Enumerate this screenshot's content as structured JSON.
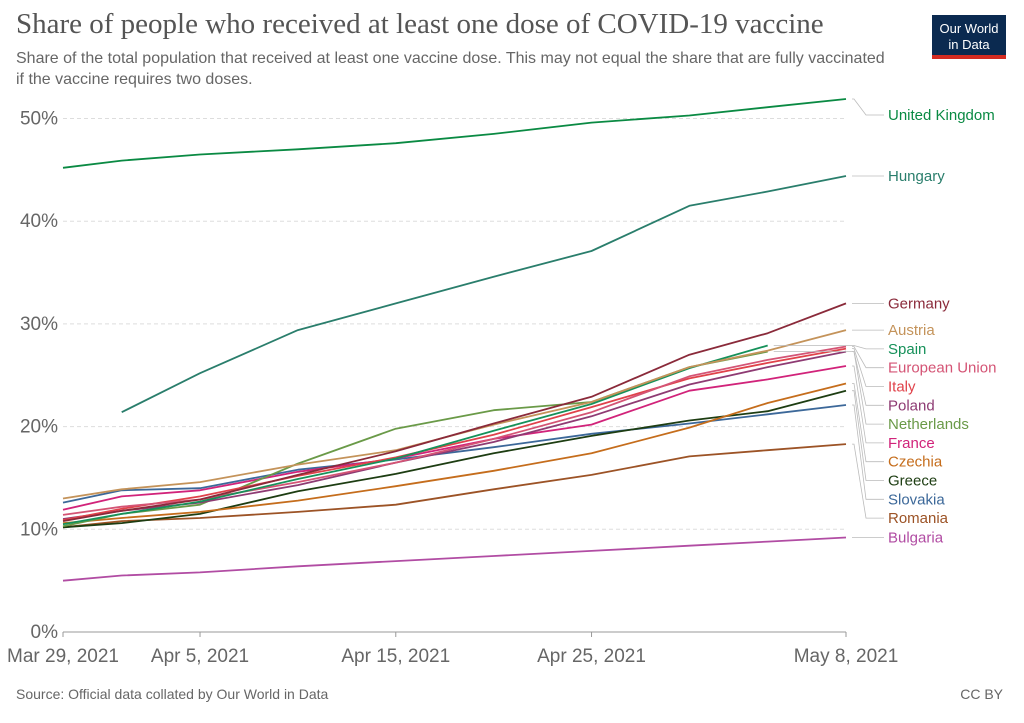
{
  "title": "Share of people who received at least one dose of COVID-19 vaccine",
  "subtitle": "Share of the total population that received at least one vaccine dose. This may not equal the share that are fully vaccinated if the vaccine requires two doses.",
  "logo": {
    "line1": "Our World",
    "line2": "in Data",
    "bg_color": "#0b2a50",
    "accent_color": "#d42b21"
  },
  "footer": {
    "source": "Source: Official data collated by Our World in Data",
    "license": "CC BY"
  },
  "chart_data": {
    "type": "line",
    "x_axis_type": "date",
    "x": [
      "2021-03-29",
      "2021-04-01",
      "2021-04-05",
      "2021-04-10",
      "2021-04-15",
      "2021-04-20",
      "2021-04-25",
      "2021-04-30",
      "2021-05-04",
      "2021-05-08"
    ],
    "x_ticks": [
      "Mar 29, 2021",
      "Apr 5, 2021",
      "Apr 15, 2021",
      "Apr 25, 2021",
      "May 8, 2021"
    ],
    "x_tick_dates": [
      "2021-03-29",
      "2021-04-05",
      "2021-04-15",
      "2021-04-25",
      "2021-05-08"
    ],
    "y_ticks": [
      "0%",
      "10%",
      "20%",
      "30%",
      "40%",
      "50%"
    ],
    "y_tick_values": [
      0,
      10,
      20,
      30,
      40,
      50
    ],
    "ylim": [
      0,
      52
    ],
    "grid": "horizontal dashed",
    "legend": "right, labels at line ends",
    "series": [
      {
        "name": "United Kingdom",
        "color": "#0a8a43",
        "values": [
          45.2,
          45.9,
          46.5,
          47.0,
          47.6,
          48.5,
          49.6,
          50.3,
          51.1,
          51.9
        ]
      },
      {
        "name": "Hungary",
        "color": "#2a7e6c",
        "values": [
          null,
          21.4,
          25.2,
          29.4,
          32.0,
          34.6,
          37.1,
          41.5,
          42.9,
          44.4
        ]
      },
      {
        "name": "Germany",
        "color": "#8a2a3a",
        "values": [
          10.8,
          11.8,
          12.9,
          15.3,
          17.6,
          20.3,
          22.9,
          27.0,
          29.1,
          32.0
        ]
      },
      {
        "name": "Austria",
        "color": "#c4935a",
        "values": [
          13.0,
          13.9,
          14.6,
          16.3,
          17.7,
          20.2,
          22.4,
          25.8,
          27.4,
          29.4
        ]
      },
      {
        "name": "Spain",
        "color": "#16915a",
        "values": [
          10.5,
          11.5,
          12.7,
          14.9,
          16.9,
          19.6,
          22.2,
          25.7,
          27.9,
          null
        ]
      },
      {
        "name": "European Union",
        "color": "#d45475",
        "values": [
          11.4,
          12.2,
          12.9,
          14.6,
          16.5,
          18.8,
          21.4,
          24.9,
          26.5,
          27.8
        ]
      },
      {
        "name": "Italy",
        "color": "#e0424a",
        "values": [
          10.9,
          12.0,
          13.2,
          15.2,
          17.0,
          19.2,
          21.9,
          24.7,
          26.2,
          27.6
        ]
      },
      {
        "name": "Poland",
        "color": "#8e3b73",
        "values": [
          11.0,
          11.8,
          12.6,
          14.3,
          16.5,
          18.5,
          21.0,
          24.1,
          25.8,
          27.3
        ]
      },
      {
        "name": "Netherlands",
        "color": "#6a9a48",
        "values": [
          10.3,
          11.5,
          12.4,
          16.4,
          19.8,
          21.6,
          22.4,
          25.8,
          27.3,
          null
        ]
      },
      {
        "name": "France",
        "color": "#d1237a",
        "values": [
          11.9,
          13.2,
          13.8,
          15.6,
          16.9,
          18.8,
          20.2,
          23.5,
          24.6,
          25.9
        ]
      },
      {
        "name": "Czechia",
        "color": "#c56d1c",
        "values": [
          10.6,
          11.1,
          11.7,
          12.8,
          14.2,
          15.7,
          17.4,
          19.9,
          22.3,
          24.2
        ]
      },
      {
        "name": "Greece",
        "color": "#1d3d12",
        "values": [
          10.2,
          10.6,
          11.5,
          13.7,
          15.4,
          17.4,
          19.1,
          20.6,
          21.5,
          23.5
        ]
      },
      {
        "name": "Slovakia",
        "color": "#3c6899",
        "values": [
          12.6,
          13.8,
          14.0,
          15.8,
          16.8,
          18.0,
          19.3,
          20.3,
          21.2,
          22.1
        ]
      },
      {
        "name": "Romania",
        "color": "#9c5326",
        "values": [
          10.2,
          10.8,
          11.1,
          11.7,
          12.4,
          13.9,
          15.3,
          17.1,
          17.7,
          18.3
        ]
      },
      {
        "name": "Bulgaria",
        "color": "#b14ca3",
        "values": [
          5.0,
          5.5,
          5.8,
          6.4,
          6.9,
          7.4,
          7.9,
          8.4,
          8.8,
          9.2
        ]
      }
    ]
  }
}
